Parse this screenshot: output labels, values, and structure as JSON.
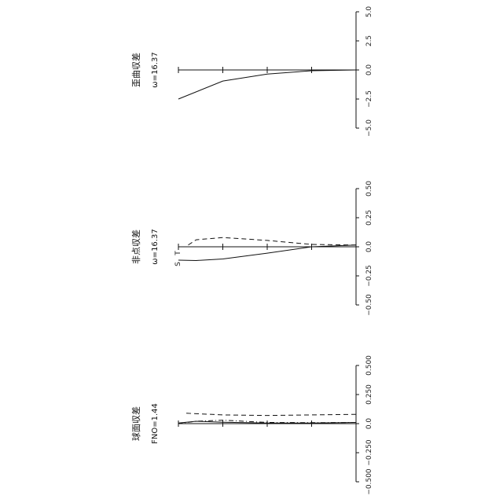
{
  "chart_data": [
    {
      "type": "line",
      "title": "歪曲収差",
      "subtitle": "ω=16.37",
      "orientation": "rotated-90-ccw",
      "ylim": [
        -5.0,
        5.0
      ],
      "yticks": [
        "5.0",
        "2.5",
        "0.0",
        "−2.5",
        "−5.0"
      ],
      "ytick_values": [
        5.0,
        2.5,
        0.0,
        -2.5,
        -5.0
      ],
      "x_field_ticks": [
        0,
        0.25,
        0.5,
        0.75,
        1.0
      ],
      "series": [
        {
          "style": "solid",
          "x": [
            0,
            0.25,
            0.5,
            0.75,
            1.0
          ],
          "values": [
            0,
            -0.07,
            -0.35,
            -0.95,
            -2.5
          ]
        }
      ]
    },
    {
      "type": "line",
      "title": "非点収差",
      "subtitle": "ω=16.37",
      "orientation": "rotated-90-ccw",
      "ylim": [
        -0.5,
        0.5
      ],
      "yticks": [
        "0.50",
        "0.25",
        "0.0",
        "−0.25",
        "−0.50"
      ],
      "ytick_values": [
        0.5,
        0.25,
        0.0,
        -0.25,
        -0.5
      ],
      "x_field_ticks": [
        0,
        0.25,
        0.5,
        0.75,
        1.0
      ],
      "series": [
        {
          "name": "S",
          "style": "solid",
          "x": [
            0,
            0.25,
            0.5,
            0.75,
            0.9,
            1.0
          ],
          "values": [
            0.015,
            0.0,
            -0.055,
            -0.105,
            -0.118,
            -0.115
          ]
        },
        {
          "name": "T",
          "style": "dashed",
          "x": [
            0,
            0.25,
            0.5,
            0.75,
            0.9,
            0.96
          ],
          "values": [
            0.015,
            0.02,
            0.055,
            0.08,
            0.06,
            0.0
          ]
        }
      ]
    },
    {
      "type": "line",
      "title": "球面収差",
      "subtitle": "FNO=1.44",
      "orientation": "rotated-90-ccw",
      "ylim": [
        -0.5,
        0.5
      ],
      "yticks": [
        "0.500",
        "0.250",
        "0.0",
        "−0.250",
        "−0.500"
      ],
      "ytick_values": [
        0.5,
        0.25,
        0.0,
        -0.25,
        -0.5
      ],
      "x_field_ticks": [
        0,
        0.25,
        0.5,
        0.75,
        1.0
      ],
      "series": [
        {
          "style": "solid",
          "x": [
            0,
            0.25,
            0.5,
            0.75,
            0.9,
            1.0
          ],
          "values": [
            0.01,
            0.005,
            0.005,
            0.012,
            0.02,
            0.005
          ]
        },
        {
          "style": "dashed",
          "x": [
            0,
            0.25,
            0.5,
            0.75,
            0.9,
            0.96
          ],
          "values": [
            0.08,
            0.075,
            0.07,
            0.075,
            0.085,
            0.09
          ]
        },
        {
          "style": "dash-dot",
          "x": [
            0,
            0.25,
            0.5,
            0.75,
            0.9,
            1.0
          ],
          "values": [
            0.01,
            0.008,
            0.01,
            0.03,
            0.02,
            0.0
          ]
        }
      ]
    }
  ]
}
